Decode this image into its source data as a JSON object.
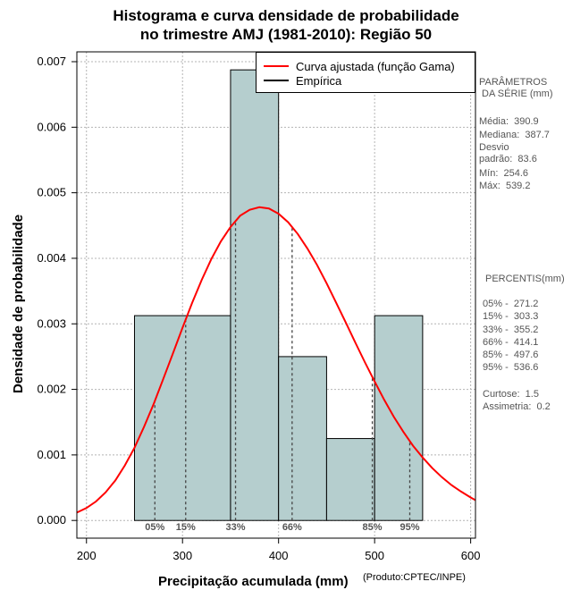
{
  "title_line1": "Histograma e curva densidade de probabilidade",
  "title_line2": "no trimestre AMJ (1981-2010): Região 50",
  "xlabel": "Precipitação acumulada (mm)",
  "ylabel": "Densidade de probabilidade",
  "credit": "(Produto:CPTEC/INPE)",
  "legend": {
    "fit_label": "Curva ajustada (função Gama)",
    "fit_color": "#ff0000",
    "emp_label": "Empírica",
    "emp_color": "#000000"
  },
  "params": {
    "header": "PARÂMETROS\n DA SÉRIE (mm)",
    "media": "Média:  390.9",
    "mediana": "Mediana:  387.7",
    "desvio": "Desvio\npadrão:  83.6",
    "min": "Mín:  254.6",
    "max": "Máx:  539.2"
  },
  "percentis": {
    "header": "PERCENTIS(mm)",
    "p05": "05% -  271.2",
    "p15": "15% -  303.3",
    "p33": "33% -  355.2",
    "p66": "66% -  414.1",
    "p85": "85% -  497.6",
    "p95": "95% -  536.6",
    "curtose": "Curtose:  1.5",
    "assimetria": "Assimetria:  0.2"
  },
  "chart_data": {
    "type": "bar",
    "title": "Histograma e curva densidade de probabilidade no trimestre AMJ (1981-2010): Região 50",
    "xlabel": "Precipitação acumulada (mm)",
    "ylabel": "Densidade de probabilidade",
    "xlim": [
      190,
      605
    ],
    "ylim": [
      -0.00027,
      0.00715
    ],
    "xticks": [
      200,
      300,
      400,
      500,
      600
    ],
    "yticks": [
      0.0,
      0.001,
      0.002,
      0.003,
      0.004,
      0.005,
      0.006,
      0.007
    ],
    "ytick_labels": [
      "0.000",
      "0.001",
      "0.002",
      "0.003",
      "0.004",
      "0.005",
      "0.006",
      "0.007"
    ],
    "grid": true,
    "bins": [
      {
        "start": 250,
        "end": 350,
        "density": 0.003125
      },
      {
        "start": 350,
        "end": 400,
        "density": 0.006875
      },
      {
        "start": 400,
        "end": 450,
        "density": 0.0025
      },
      {
        "start": 450,
        "end": 500,
        "density": 0.00125
      },
      {
        "start": 500,
        "end": 550,
        "density": 0.003125
      }
    ],
    "bar_color": "#b5cece",
    "curve": {
      "name": "Curva ajustada (função Gama)",
      "x": [
        190,
        200,
        210,
        220,
        230,
        240,
        250,
        260,
        270,
        280,
        290,
        300,
        310,
        320,
        330,
        340,
        350,
        360,
        370,
        380,
        390,
        400,
        410,
        420,
        430,
        440,
        450,
        460,
        470,
        480,
        490,
        500,
        510,
        520,
        530,
        540,
        550,
        560,
        570,
        580,
        590,
        600,
        605
      ],
      "y": [
        0.00012,
        0.00019,
        0.00029,
        0.00043,
        0.00061,
        0.00084,
        0.00111,
        0.00143,
        0.00178,
        0.00216,
        0.00255,
        0.00294,
        0.00332,
        0.00367,
        0.00399,
        0.00426,
        0.00448,
        0.00465,
        0.00474,
        0.00478,
        0.00476,
        0.00468,
        0.00455,
        0.00437,
        0.00415,
        0.0039,
        0.00362,
        0.00332,
        0.00302,
        0.00271,
        0.00241,
        0.00212,
        0.00184,
        0.00158,
        0.00135,
        0.00114,
        0.00096,
        0.0008,
        0.00066,
        0.00054,
        0.00044,
        0.00035,
        0.00031
      ]
    },
    "percentiles": [
      {
        "label": "05%",
        "value": 271.2
      },
      {
        "label": "15%",
        "value": 303.3
      },
      {
        "label": "33%",
        "value": 355.2
      },
      {
        "label": "66%",
        "value": 414.1
      },
      {
        "label": "85%",
        "value": 497.6
      },
      {
        "label": "95%",
        "value": 536.6
      }
    ]
  }
}
